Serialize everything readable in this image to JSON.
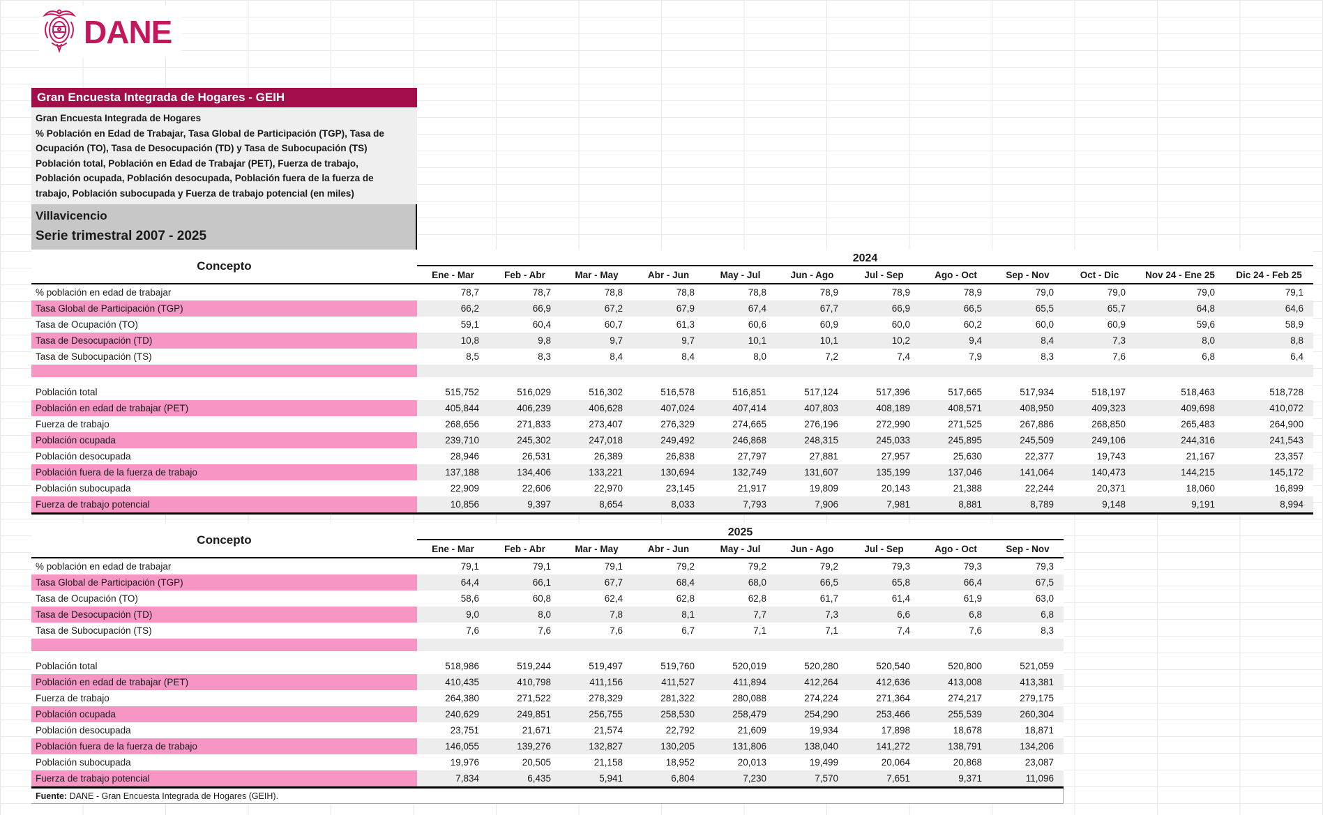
{
  "logo": {
    "name": "DANE"
  },
  "header": {
    "title": "Gran Encuesta Integrada de Hogares - GEIH"
  },
  "subtitle_lines": [
    "Gran Encuesta Integrada de Hogares",
    "% Población en Edad de Trabajar, Tasa Global de Participación (TGP), Tasa de",
    "Ocupación (TO), Tasa de Desocupación (TD) y Tasa de Subocupación (TS)",
    "Población total, Población en Edad de Trabajar (PET), Fuerza de trabajo,",
    "Población ocupada, Población desocupada, Población fuera de la fuerza de",
    "trabajo, Población subocupada y Fuerza de trabajo potencial (en miles)"
  ],
  "region": {
    "name": "Villavicencio",
    "series": "Serie trimestral 2007 - 2025"
  },
  "colors": {
    "brand": "#C4175C",
    "title_bar": "#A30D49",
    "row_pink": "#F795C5",
    "row_shaded": "#EDEDED"
  },
  "tables": [
    {
      "concepto": "Concepto",
      "year": "2024",
      "columns": [
        "Ene - Mar",
        "Feb - Abr",
        "Mar - May",
        "Abr - Jun",
        "May - Jul",
        "Jun - Ago",
        "Jul - Sep",
        "Ago - Oct",
        "Sep - Nov",
        "Oct - Dic",
        "Nov 24 - Ene 25",
        "Dic 24 - Feb 25"
      ],
      "rows": [
        {
          "label": "% población en edad de trabajar",
          "shaded": false,
          "values": [
            "78,7",
            "78,7",
            "78,8",
            "78,8",
            "78,8",
            "78,9",
            "78,9",
            "78,9",
            "79,0",
            "79,0",
            "79,0",
            "79,1"
          ]
        },
        {
          "label": "Tasa Global de Participación (TGP)",
          "shaded": true,
          "values": [
            "66,2",
            "66,9",
            "67,2",
            "67,9",
            "67,4",
            "67,7",
            "66,9",
            "66,5",
            "65,5",
            "65,7",
            "64,8",
            "64,6"
          ]
        },
        {
          "label": "Tasa de Ocupación (TO)",
          "shaded": false,
          "values": [
            "59,1",
            "60,4",
            "60,7",
            "61,3",
            "60,6",
            "60,9",
            "60,0",
            "60,2",
            "60,0",
            "60,9",
            "59,6",
            "58,9"
          ]
        },
        {
          "label": "Tasa de Desocupación (TD)",
          "shaded": true,
          "values": [
            "10,8",
            "9,8",
            "9,7",
            "9,7",
            "10,1",
            "10,1",
            "10,2",
            "9,4",
            "8,4",
            "7,3",
            "8,0",
            "8,8"
          ]
        },
        {
          "label": "Tasa de Subocupación (TS)",
          "shaded": false,
          "values": [
            "8,5",
            "8,3",
            "8,4",
            "8,4",
            "8,0",
            "7,2",
            "7,4",
            "7,9",
            "8,3",
            "7,6",
            "6,8",
            "6,4"
          ]
        },
        {
          "type": "blank"
        },
        {
          "type": "gap"
        },
        {
          "label": "Población total",
          "shaded": false,
          "values": [
            "515,752",
            "516,029",
            "516,302",
            "516,578",
            "516,851",
            "517,124",
            "517,396",
            "517,665",
            "517,934",
            "518,197",
            "518,463",
            "518,728"
          ]
        },
        {
          "label": "Población en edad de trabajar (PET)",
          "shaded": true,
          "values": [
            "405,844",
            "406,239",
            "406,628",
            "407,024",
            "407,414",
            "407,803",
            "408,189",
            "408,571",
            "408,950",
            "409,323",
            "409,698",
            "410,072"
          ]
        },
        {
          "label": "Fuerza de trabajo",
          "shaded": false,
          "values": [
            "268,656",
            "271,833",
            "273,407",
            "276,329",
            "274,665",
            "276,196",
            "272,990",
            "271,525",
            "267,886",
            "268,850",
            "265,483",
            "264,900"
          ]
        },
        {
          "label": "Población ocupada",
          "shaded": true,
          "values": [
            "239,710",
            "245,302",
            "247,018",
            "249,492",
            "246,868",
            "248,315",
            "245,033",
            "245,895",
            "245,509",
            "249,106",
            "244,316",
            "241,543"
          ]
        },
        {
          "label": "Población desocupada",
          "shaded": false,
          "values": [
            "28,946",
            "26,531",
            "26,389",
            "26,838",
            "27,797",
            "27,881",
            "27,957",
            "25,630",
            "22,377",
            "19,743",
            "21,167",
            "23,357"
          ]
        },
        {
          "label": "Población fuera de la fuerza de trabajo",
          "shaded": true,
          "values": [
            "137,188",
            "134,406",
            "133,221",
            "130,694",
            "132,749",
            "131,607",
            "135,199",
            "137,046",
            "141,064",
            "140,473",
            "144,215",
            "145,172"
          ]
        },
        {
          "label": "Población subocupada",
          "shaded": false,
          "values": [
            "22,909",
            "22,606",
            "22,970",
            "23,145",
            "21,917",
            "19,809",
            "20,143",
            "21,388",
            "22,244",
            "20,371",
            "18,060",
            "16,899"
          ]
        },
        {
          "label": "Fuerza de trabajo potencial",
          "shaded": true,
          "values": [
            "10,856",
            "9,397",
            "8,654",
            "8,033",
            "7,793",
            "7,906",
            "7,981",
            "8,881",
            "8,789",
            "9,148",
            "9,191",
            "8,994"
          ]
        }
      ]
    },
    {
      "concepto": "Concepto",
      "year": "2025",
      "columns": [
        "Ene - Mar",
        "Feb - Abr",
        "Mar - May",
        "Abr - Jun",
        "May - Jul",
        "Jun - Ago",
        "Jul - Sep",
        "Ago - Oct",
        "Sep - Nov"
      ],
      "rows": [
        {
          "label": "% población en edad de trabajar",
          "shaded": false,
          "values": [
            "79,1",
            "79,1",
            "79,1",
            "79,2",
            "79,2",
            "79,2",
            "79,3",
            "79,3",
            "79,3"
          ]
        },
        {
          "label": "Tasa Global de Participación (TGP)",
          "shaded": true,
          "values": [
            "64,4",
            "66,1",
            "67,7",
            "68,4",
            "68,0",
            "66,5",
            "65,8",
            "66,4",
            "67,5"
          ]
        },
        {
          "label": "Tasa de Ocupación (TO)",
          "shaded": false,
          "values": [
            "58,6",
            "60,8",
            "62,4",
            "62,8",
            "62,8",
            "61,7",
            "61,4",
            "61,9",
            "63,0"
          ]
        },
        {
          "label": "Tasa de Desocupación (TD)",
          "shaded": true,
          "values": [
            "9,0",
            "8,0",
            "7,8",
            "8,1",
            "7,7",
            "7,3",
            "6,6",
            "6,8",
            "6,8"
          ]
        },
        {
          "label": "Tasa de Subocupación (TS)",
          "shaded": false,
          "values": [
            "7,6",
            "7,6",
            "7,6",
            "6,7",
            "7,1",
            "7,1",
            "7,4",
            "7,6",
            "8,3"
          ]
        },
        {
          "type": "blank"
        },
        {
          "type": "gap"
        },
        {
          "label": "Población total",
          "shaded": false,
          "values": [
            "518,986",
            "519,244",
            "519,497",
            "519,760",
            "520,019",
            "520,280",
            "520,540",
            "520,800",
            "521,059"
          ]
        },
        {
          "label": "Población en edad de trabajar (PET)",
          "shaded": true,
          "values": [
            "410,435",
            "410,798",
            "411,156",
            "411,527",
            "411,894",
            "412,264",
            "412,636",
            "413,008",
            "413,381"
          ]
        },
        {
          "label": "Fuerza de trabajo",
          "shaded": false,
          "values": [
            "264,380",
            "271,522",
            "278,329",
            "281,322",
            "280,088",
            "274,224",
            "271,364",
            "274,217",
            "279,175"
          ]
        },
        {
          "label": "Población ocupada",
          "shaded": true,
          "values": [
            "240,629",
            "249,851",
            "256,755",
            "258,530",
            "258,479",
            "254,290",
            "253,466",
            "255,539",
            "260,304"
          ]
        },
        {
          "label": "Población desocupada",
          "shaded": false,
          "values": [
            "23,751",
            "21,671",
            "21,574",
            "22,792",
            "21,609",
            "19,934",
            "17,898",
            "18,678",
            "18,871"
          ]
        },
        {
          "label": "Población fuera de la fuerza de trabajo",
          "shaded": true,
          "values": [
            "146,055",
            "139,276",
            "132,827",
            "130,205",
            "131,806",
            "138,040",
            "141,272",
            "138,791",
            "134,206"
          ]
        },
        {
          "label": "Población subocupada",
          "shaded": false,
          "values": [
            "19,976",
            "20,505",
            "21,158",
            "18,952",
            "20,013",
            "19,499",
            "20,064",
            "20,868",
            "23,087"
          ]
        },
        {
          "label": "Fuerza de trabajo potencial",
          "shaded": true,
          "values": [
            "7,834",
            "6,435",
            "5,941",
            "6,804",
            "7,230",
            "7,570",
            "7,651",
            "9,371",
            "11,096"
          ]
        }
      ]
    }
  ],
  "footer": {
    "bold": "Fuente:",
    "text": " DANE - Gran Encuesta Integrada de Hogares (GEIH)."
  }
}
